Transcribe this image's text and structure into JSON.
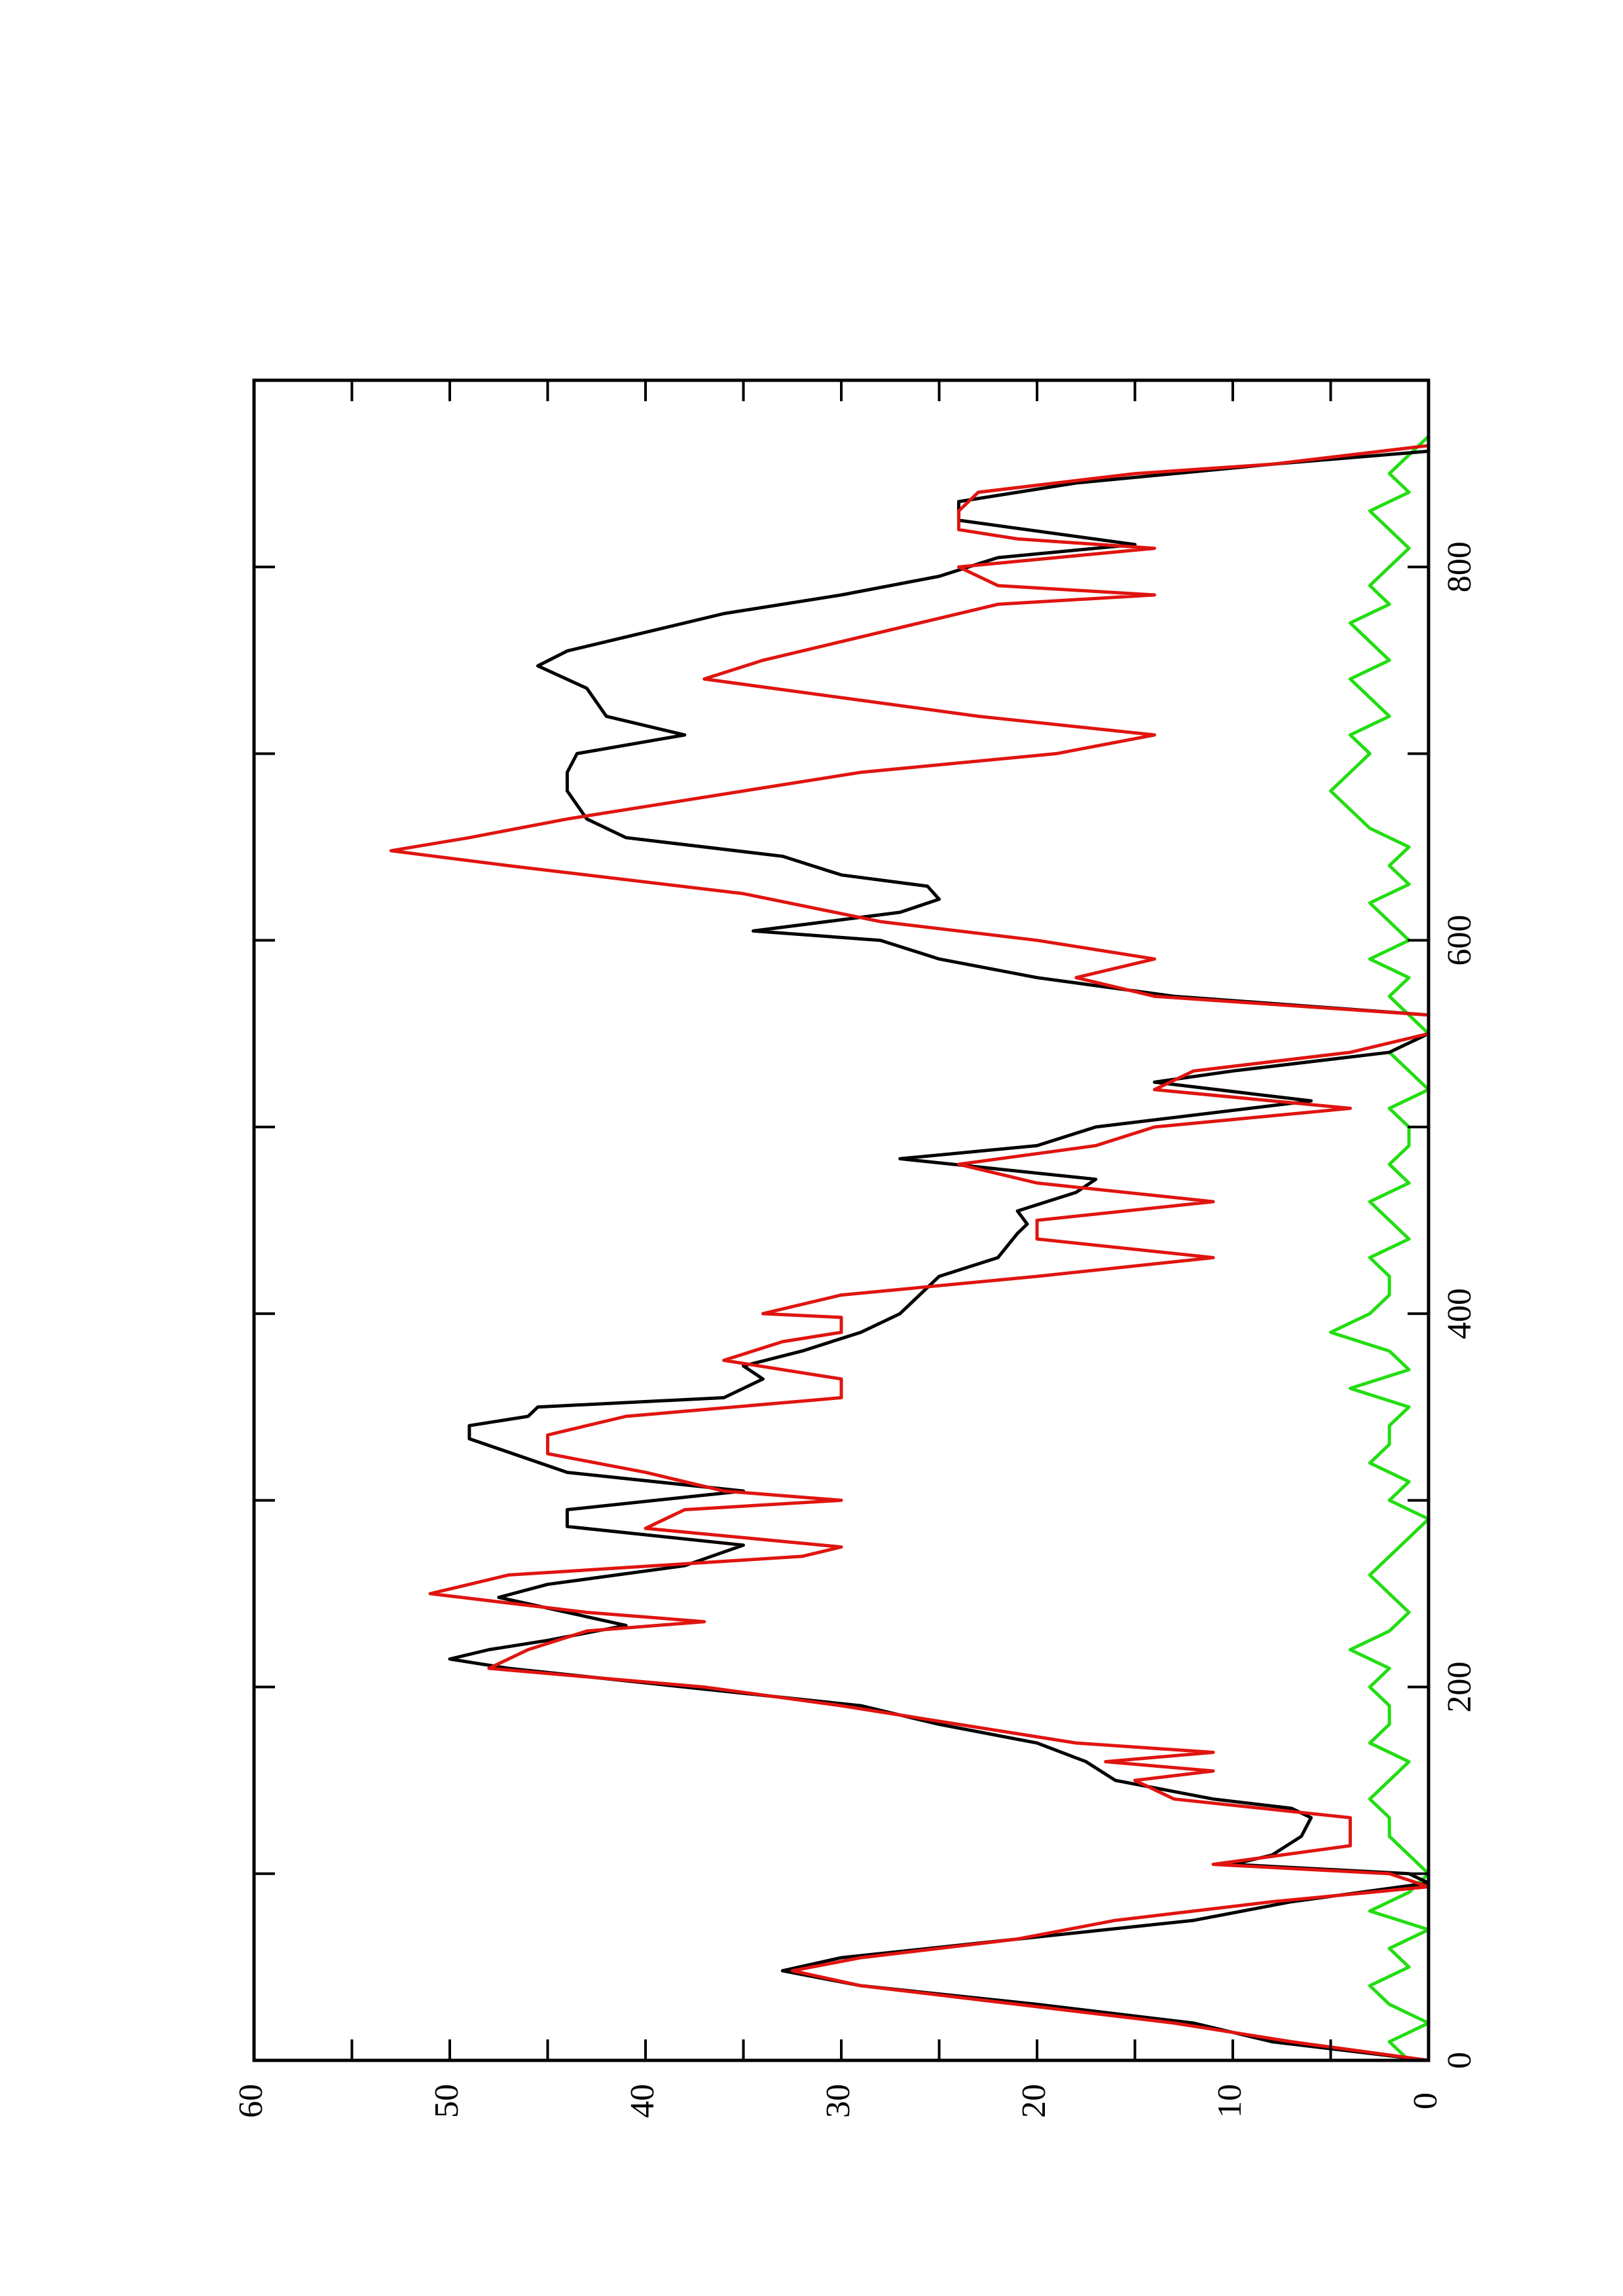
{
  "chart_data": {
    "type": "line",
    "xlim": [
      0,
      900
    ],
    "xticks": [
      0,
      200,
      400,
      600,
      800
    ],
    "xminorticks": [
      100,
      300,
      500,
      700
    ],
    "ylim": [
      0,
      60
    ],
    "yticks": [
      0,
      10,
      20,
      30,
      40,
      50,
      60
    ],
    "yminorticks": [
      5,
      15,
      25,
      35,
      45,
      55
    ],
    "series": [
      {
        "color": "#000000",
        "x": [
          0,
          10,
          20,
          30,
          40,
          48,
          55,
          65,
          75,
          85,
          95,
          100,
          105,
          110,
          120,
          130,
          135,
          140,
          150,
          160,
          170,
          180,
          190,
          200,
          210,
          215,
          220,
          225,
          233,
          240,
          248,
          255,
          265,
          276,
          286,
          295,
          305,
          315,
          333,
          340,
          345,
          350,
          355,
          365,
          372,
          380,
          390,
          400,
          410,
          420,
          430,
          443,
          448,
          455,
          465,
          472,
          483,
          490,
          500,
          514,
          524,
          530,
          540,
          550,
          560,
          570,
          580,
          590,
          600,
          605,
          615,
          622,
          629,
          635,
          645,
          655,
          665,
          680,
          690,
          700,
          710,
          720,
          735,
          747,
          755,
          765,
          775,
          785,
          795,
          805,
          812,
          825,
          835,
          845,
          855,
          862
        ],
        "values": [
          0,
          8,
          12,
          20,
          29,
          33,
          30,
          21,
          12,
          7,
          0,
          1,
          10,
          8,
          6.5,
          6,
          7,
          11,
          16,
          17.5,
          20,
          25,
          29,
          38,
          47,
          50,
          48,
          45,
          41,
          44,
          47.5,
          45,
          38,
          35,
          44,
          44,
          35,
          44,
          49,
          49,
          46,
          45.5,
          36,
          34,
          35,
          32,
          29,
          27,
          26,
          25,
          22,
          21,
          20.5,
          21,
          18,
          17,
          27,
          20,
          17,
          6,
          14,
          10,
          2,
          0,
          0,
          13,
          20,
          25,
          28,
          34.5,
          27,
          25,
          25.6,
          30,
          33,
          41,
          43,
          44,
          44,
          43.5,
          38,
          42,
          43,
          45.5,
          44,
          40,
          36,
          30,
          25,
          22,
          15,
          24,
          24,
          18,
          8,
          0
        ]
      },
      {
        "color": "#e0140f",
        "x": [
          0,
          10,
          20,
          30,
          40,
          48,
          55,
          65,
          75,
          85,
          93,
          100,
          105,
          115,
          130,
          140,
          150,
          155,
          160,
          165,
          170,
          180,
          190,
          200,
          210,
          220,
          230,
          235,
          240,
          250,
          260,
          270,
          275,
          285,
          295,
          300,
          305,
          315,
          325,
          335,
          345,
          355,
          365,
          370,
          375,
          385,
          390,
          398,
          400,
          410,
          420,
          430,
          440,
          450,
          460,
          470,
          480,
          490,
          500,
          510,
          520,
          530,
          540,
          550,
          560,
          570,
          580,
          590,
          600,
          610,
          625,
          640,
          648,
          655,
          665,
          675,
          690,
          700,
          710,
          720,
          730,
          740,
          750,
          760,
          770,
          780,
          785,
          790,
          800,
          810,
          815,
          820,
          830,
          840,
          850,
          855,
          865
        ],
        "values": [
          0,
          7,
          13,
          21,
          29,
          32.5,
          29,
          21,
          16,
          8,
          0,
          2,
          11,
          4,
          4,
          13,
          15,
          11,
          16.5,
          11,
          18,
          24,
          30,
          37,
          48,
          46,
          43,
          37,
          43,
          51,
          47,
          32,
          30,
          40,
          38,
          30,
          36,
          40,
          45,
          45,
          41,
          30,
          30,
          33,
          36,
          33,
          30,
          30,
          34,
          30,
          20,
          11,
          20,
          20,
          11,
          20,
          24,
          17,
          14,
          4,
          14,
          12,
          4,
          0,
          0,
          14,
          18,
          14,
          20,
          28,
          35,
          47,
          53,
          49,
          44,
          38,
          29,
          19,
          14,
          23,
          30,
          37,
          34,
          30,
          26,
          22,
          14,
          22,
          24,
          14,
          21,
          24,
          24,
          23,
          15,
          8,
          0
        ]
      },
      {
        "color": "#22dd11",
        "x": [
          0,
          10,
          20,
          30,
          40,
          50,
          60,
          70,
          80,
          90,
          100,
          110,
          120,
          130,
          140,
          150,
          160,
          170,
          180,
          190,
          200,
          210,
          220,
          230,
          240,
          250,
          260,
          270,
          280,
          290,
          300,
          310,
          320,
          330,
          340,
          350,
          360,
          370,
          380,
          390,
          400,
          410,
          420,
          430,
          440,
          450,
          460,
          470,
          480,
          490,
          500,
          510,
          520,
          530,
          540,
          550,
          560,
          570,
          580,
          590,
          600,
          610,
          620,
          630,
          640,
          650,
          660,
          670,
          680,
          690,
          700,
          710,
          720,
          730,
          740,
          750,
          760,
          770,
          780,
          790,
          800,
          810,
          820,
          830,
          840,
          850,
          860,
          870
        ],
        "values": [
          1,
          2,
          0,
          2,
          3,
          1,
          2,
          0,
          3,
          1,
          0,
          1,
          2,
          2,
          3,
          2,
          1,
          3,
          2,
          2,
          3,
          2,
          4,
          2,
          1,
          2,
          3,
          2,
          1,
          0,
          2,
          1,
          3,
          2,
          2,
          1,
          4,
          1,
          2,
          5,
          3,
          2,
          2,
          3,
          1,
          2,
          3,
          1,
          2,
          1,
          1,
          2,
          0,
          1,
          2,
          0,
          1,
          2,
          1,
          3,
          1,
          2,
          3,
          1,
          2,
          1,
          3,
          4,
          5,
          4,
          3,
          4,
          2,
          3,
          4,
          2,
          3,
          4,
          2,
          3,
          2,
          1,
          2,
          3,
          1,
          2,
          1,
          0
        ]
      }
    ]
  }
}
